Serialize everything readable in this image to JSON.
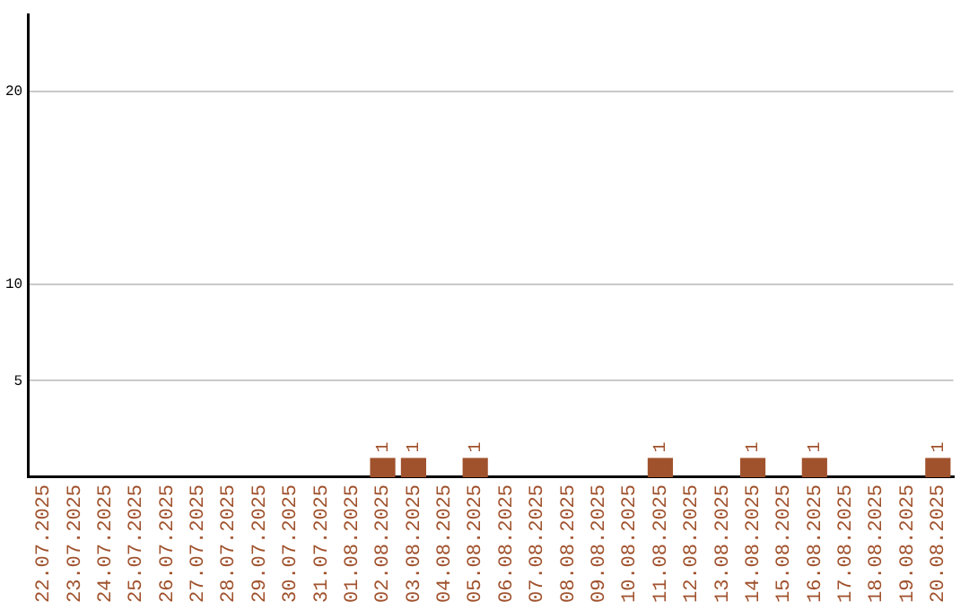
{
  "chart_data": {
    "type": "bar",
    "categories": [
      "22.07.2025",
      "23.07.2025",
      "24.07.2025",
      "25.07.2025",
      "26.07.2025",
      "27.07.2025",
      "28.07.2025",
      "29.07.2025",
      "30.07.2025",
      "31.07.2025",
      "01.08.2025",
      "02.08.2025",
      "03.08.2025",
      "04.08.2025",
      "05.08.2025",
      "06.08.2025",
      "07.08.2025",
      "08.08.2025",
      "09.08.2025",
      "10.08.2025",
      "11.08.2025",
      "12.08.2025",
      "13.08.2025",
      "14.08.2025",
      "15.08.2025",
      "16.08.2025",
      "17.08.2025",
      "18.08.2025",
      "19.08.2025",
      "20.08.2025"
    ],
    "values": [
      0,
      0,
      0,
      0,
      0,
      0,
      0,
      0,
      0,
      0,
      0,
      1,
      1,
      0,
      1,
      0,
      0,
      0,
      0,
      0,
      1,
      0,
      0,
      1,
      0,
      1,
      0,
      0,
      0,
      1
    ],
    "value_labels": [
      null,
      null,
      null,
      null,
      null,
      null,
      null,
      null,
      null,
      null,
      null,
      "1",
      "1",
      null,
      "1",
      null,
      null,
      null,
      null,
      null,
      "1",
      null,
      null,
      "1",
      null,
      "1",
      null,
      null,
      null,
      "1"
    ],
    "color": "#a0522d",
    "ylim": [
      0,
      24
    ],
    "yticks": [
      5,
      10,
      20
    ],
    "grid": "y",
    "legend": false
  }
}
